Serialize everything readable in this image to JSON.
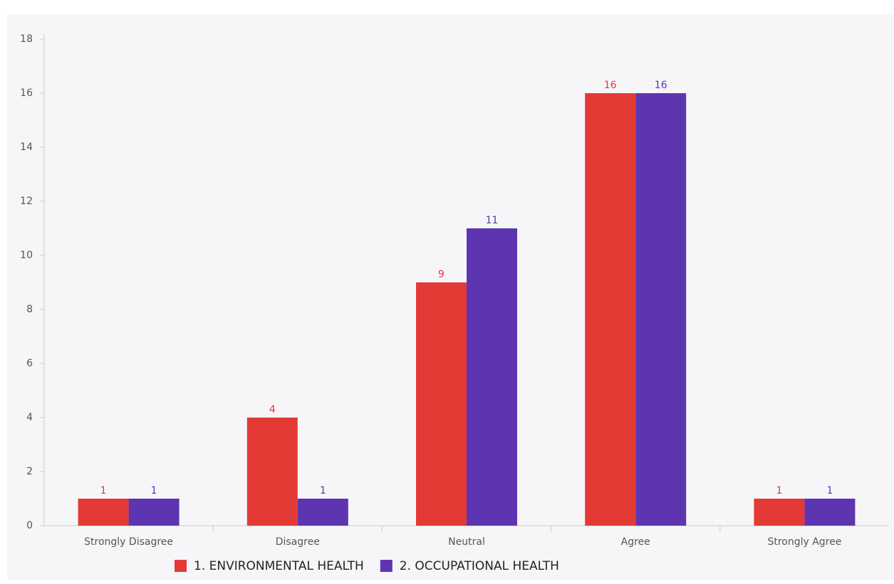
{
  "chart_data": {
    "type": "bar",
    "categories": [
      "Strongly Disagree",
      "Disagree",
      "Neutral",
      "Agree",
      "Strongly Agree"
    ],
    "series": [
      {
        "name": "1. ENVIRONMENTAL HEALTH",
        "color": "#e33a36",
        "values": [
          1,
          4,
          9,
          16,
          1
        ]
      },
      {
        "name": "2. OCCUPATIONAL HEALTH",
        "color": "#5e35b1",
        "values": [
          1,
          1,
          11,
          16,
          1
        ]
      }
    ],
    "ylim": [
      0,
      18
    ],
    "yticks": [
      0,
      2,
      4,
      6,
      8,
      10,
      12,
      14,
      16,
      18
    ],
    "grid": false,
    "legend": "bottom"
  }
}
